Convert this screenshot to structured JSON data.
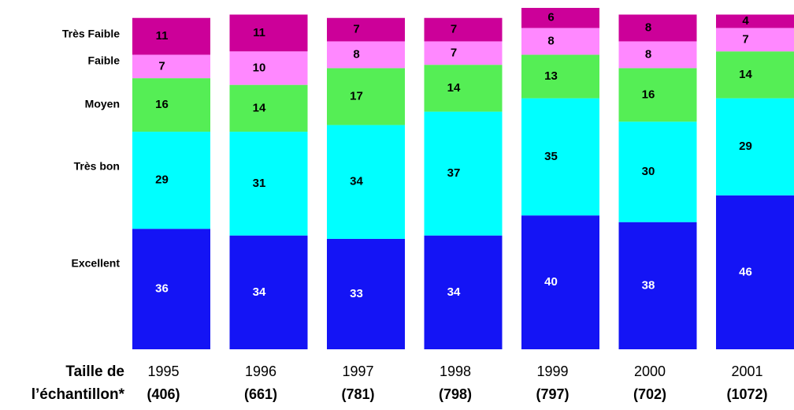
{
  "chart_data": {
    "type": "stacked_bar",
    "categories": [
      "1995",
      "1996",
      "1997",
      "1998",
      "1999",
      "2000",
      "2001"
    ],
    "sample_sizes": [
      "(406)",
      "(661)",
      "(781)",
      "(798)",
      "(797)",
      "(702)",
      "(1072)"
    ],
    "x_label": [
      "Taille de",
      "l’échantillon*"
    ],
    "series": [
      {
        "name": "Excellent",
        "color": "#1414f5",
        "values": [
          36,
          34,
          33,
          34,
          40,
          38,
          46
        ]
      },
      {
        "name": "Très bon",
        "color": "#00ffff",
        "values": [
          29,
          31,
          34,
          37,
          35,
          30,
          29
        ]
      },
      {
        "name": "Moyen",
        "color": "#55ee55",
        "values": [
          16,
          14,
          17,
          14,
          13,
          16,
          14
        ]
      },
      {
        "name": "Faible",
        "color": "#ff88ff",
        "values": [
          7,
          10,
          8,
          7,
          8,
          8,
          7
        ]
      },
      {
        "name": "Très Faible",
        "color": "#cc0099",
        "values": [
          11,
          11,
          7,
          7,
          6,
          8,
          4
        ]
      }
    ]
  }
}
